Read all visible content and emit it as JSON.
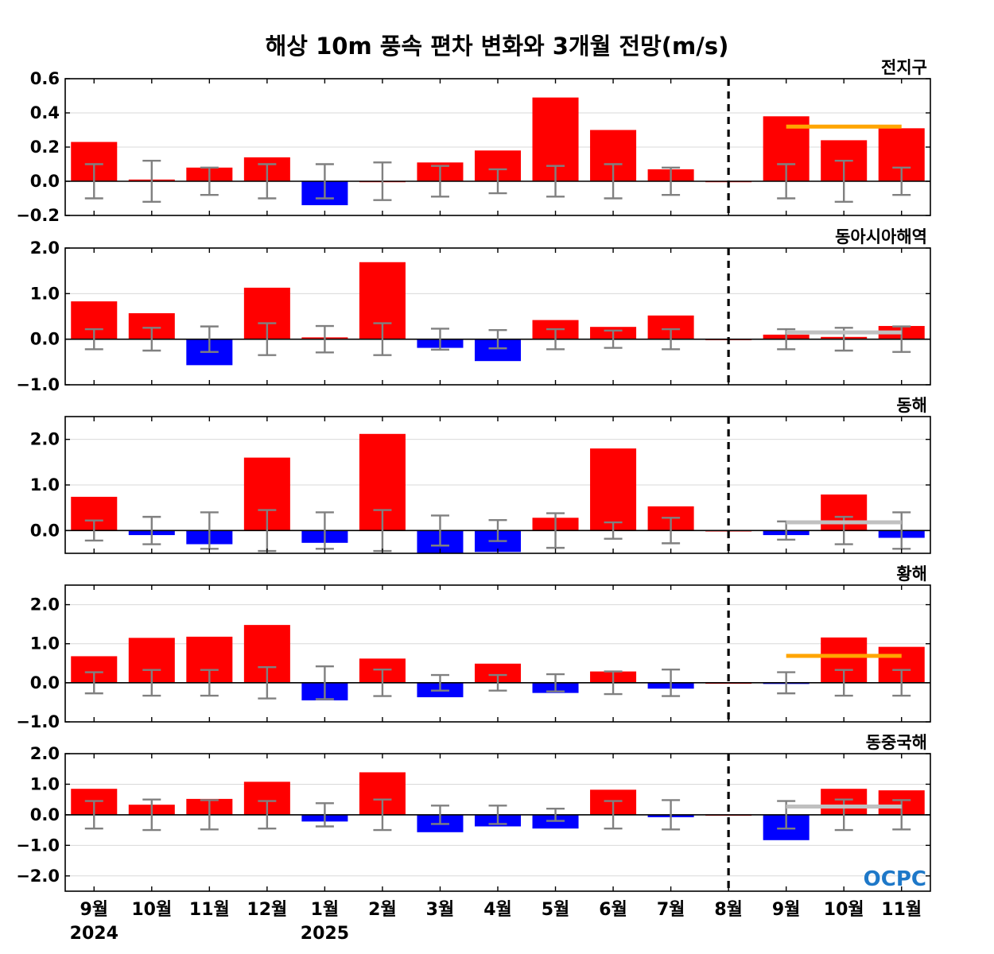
{
  "title": "해상 10m 풍속 편차 변화와 3개월 전망(m/s)",
  "logo": "OCPC",
  "colors": {
    "positive": "#ff0000",
    "negative": "#0000ff",
    "errorbar": "#808080",
    "forecast_above": "#ffa500",
    "forecast_normal": "#c0c0c0"
  },
  "chart_data": [
    {
      "type": "bar",
      "name": "전지구",
      "categories": [
        "9월",
        "10월",
        "11월",
        "12월",
        "1월",
        "2월",
        "3월",
        "4월",
        "5월",
        "6월",
        "7월",
        "8월",
        "9월",
        "10월",
        "11월"
      ],
      "values": [
        0.23,
        0.01,
        0.08,
        0.14,
        -0.14,
        0.0,
        0.11,
        0.18,
        0.49,
        0.3,
        0.07,
        0.0,
        0.38,
        0.24,
        0.31
      ],
      "error_range": [
        [
          -0.1,
          0.1
        ],
        [
          -0.12,
          0.12
        ],
        [
          -0.08,
          0.08
        ],
        [
          -0.1,
          0.1
        ],
        [
          -0.1,
          0.1
        ],
        [
          -0.11,
          0.11
        ],
        [
          -0.09,
          0.09
        ],
        [
          -0.07,
          0.07
        ],
        [
          -0.09,
          0.09
        ],
        [
          -0.1,
          0.1
        ],
        [
          -0.08,
          0.08
        ],
        null,
        [
          -0.1,
          0.1
        ],
        [
          -0.12,
          0.12
        ],
        [
          -0.08,
          0.08
        ]
      ],
      "forecast": {
        "from_index": 12,
        "to_index": 14,
        "value": 0.32,
        "category": "above"
      },
      "ylim": [
        -0.2,
        0.6
      ],
      "yticks": [
        -0.2,
        0.0,
        0.2,
        0.4,
        0.6
      ],
      "ytick_labels": [
        "−0.2",
        "0.0",
        "0.2",
        "0.4",
        "0.6"
      ]
    },
    {
      "type": "bar",
      "name": "동아시아해역",
      "categories": [
        "9월",
        "10월",
        "11월",
        "12월",
        "1월",
        "2월",
        "3월",
        "4월",
        "5월",
        "6월",
        "7월",
        "8월",
        "9월",
        "10월",
        "11월"
      ],
      "values": [
        0.83,
        0.57,
        -0.57,
        1.13,
        0.04,
        1.69,
        -0.19,
        -0.48,
        0.42,
        0.27,
        0.52,
        0.0,
        0.1,
        0.05,
        0.29
      ],
      "error_range": [
        [
          -0.22,
          0.22
        ],
        [
          -0.25,
          0.25
        ],
        [
          -0.28,
          0.28
        ],
        [
          -0.35,
          0.35
        ],
        [
          -0.29,
          0.29
        ],
        [
          -0.35,
          0.35
        ],
        [
          -0.23,
          0.23
        ],
        [
          -0.2,
          0.2
        ],
        [
          -0.22,
          0.22
        ],
        [
          -0.19,
          0.19
        ],
        [
          -0.22,
          0.22
        ],
        null,
        [
          -0.22,
          0.22
        ],
        [
          -0.25,
          0.25
        ],
        [
          -0.28,
          0.28
        ]
      ],
      "forecast": {
        "from_index": 12,
        "to_index": 14,
        "value": 0.15,
        "category": "normal"
      },
      "ylim": [
        -1.0,
        2.0
      ],
      "yticks": [
        -1.0,
        0.0,
        1.0,
        2.0
      ],
      "ytick_labels": [
        "−1.0",
        "0.0",
        "1.0",
        "2.0"
      ]
    },
    {
      "type": "bar",
      "name": "동해",
      "categories": [
        "9월",
        "10월",
        "11월",
        "12월",
        "1월",
        "2월",
        "3월",
        "4월",
        "5월",
        "6월",
        "7월",
        "8월",
        "9월",
        "10월",
        "11월"
      ],
      "values": [
        0.74,
        -0.1,
        -0.3,
        1.6,
        -0.27,
        2.12,
        -0.52,
        -0.47,
        0.28,
        1.8,
        0.53,
        0.0,
        -0.1,
        0.79,
        -0.16
      ],
      "error_range": [
        [
          -0.22,
          0.22
        ],
        [
          -0.3,
          0.3
        ],
        [
          -0.4,
          0.4
        ],
        [
          -0.45,
          0.45
        ],
        [
          -0.4,
          0.4
        ],
        [
          -0.45,
          0.45
        ],
        [
          -0.33,
          0.33
        ],
        [
          -0.23,
          0.23
        ],
        [
          -0.38,
          0.38
        ],
        [
          -0.18,
          0.18
        ],
        [
          -0.28,
          0.28
        ],
        null,
        [
          -0.2,
          0.2
        ],
        [
          -0.3,
          0.3
        ],
        [
          -0.4,
          0.4
        ]
      ],
      "forecast": {
        "from_index": 12,
        "to_index": 14,
        "value": 0.18,
        "category": "normal"
      },
      "ylim": [
        -0.5,
        2.5
      ],
      "yticks": [
        0.0,
        1.0,
        2.0
      ],
      "ytick_labels": [
        "0.0",
        "1.0",
        "2.0"
      ]
    },
    {
      "type": "bar",
      "name": "황해",
      "categories": [
        "9월",
        "10월",
        "11월",
        "12월",
        "1월",
        "2월",
        "3월",
        "4월",
        "5월",
        "6월",
        "7월",
        "8월",
        "9월",
        "10월",
        "11월"
      ],
      "values": [
        0.68,
        1.15,
        1.18,
        1.48,
        -0.45,
        0.62,
        -0.37,
        0.49,
        -0.26,
        0.29,
        -0.15,
        0.0,
        -0.03,
        1.16,
        0.92
      ],
      "error_range": [
        [
          -0.27,
          0.27
        ],
        [
          -0.33,
          0.33
        ],
        [
          -0.33,
          0.33
        ],
        [
          -0.4,
          0.4
        ],
        [
          -0.42,
          0.42
        ],
        [
          -0.34,
          0.34
        ],
        [
          -0.2,
          0.2
        ],
        [
          -0.2,
          0.2
        ],
        [
          -0.22,
          0.22
        ],
        [
          -0.29,
          0.29
        ],
        [
          -0.34,
          0.34
        ],
        null,
        [
          -0.27,
          0.27
        ],
        [
          -0.33,
          0.33
        ],
        [
          -0.33,
          0.33
        ]
      ],
      "forecast": {
        "from_index": 12,
        "to_index": 14,
        "value": 0.69,
        "category": "above"
      },
      "ylim": [
        -1.0,
        2.5
      ],
      "yticks": [
        -1.0,
        0.0,
        1.0,
        2.0
      ],
      "ytick_labels": [
        "−1.0",
        "0.0",
        "1.0",
        "2.0"
      ]
    },
    {
      "type": "bar",
      "name": "동중국해",
      "categories": [
        "9월",
        "10월",
        "11월",
        "12월",
        "1월",
        "2월",
        "3월",
        "4월",
        "5월",
        "6월",
        "7월",
        "8월",
        "9월",
        "10월",
        "11월"
      ],
      "values": [
        0.85,
        0.33,
        0.52,
        1.08,
        -0.22,
        1.39,
        -0.57,
        -0.38,
        -0.45,
        0.82,
        -0.08,
        0.0,
        -0.83,
        0.85,
        0.8
      ],
      "error_range": [
        [
          -0.45,
          0.45
        ],
        [
          -0.5,
          0.5
        ],
        [
          -0.48,
          0.48
        ],
        [
          -0.45,
          0.45
        ],
        [
          -0.38,
          0.38
        ],
        [
          -0.5,
          0.5
        ],
        [
          -0.3,
          0.3
        ],
        [
          -0.3,
          0.3
        ],
        [
          -0.2,
          0.2
        ],
        [
          -0.45,
          0.45
        ],
        [
          -0.48,
          0.48
        ],
        null,
        [
          -0.45,
          0.45
        ],
        [
          -0.5,
          0.5
        ],
        [
          -0.48,
          0.48
        ]
      ],
      "forecast": {
        "from_index": 12,
        "to_index": 14,
        "value": 0.27,
        "category": "normal"
      },
      "ylim": [
        -2.5,
        2.0
      ],
      "yticks": [
        -2.0,
        -1.0,
        0.0,
        1.0,
        2.0
      ],
      "ytick_labels": [
        "−2.0",
        "−1.0",
        "0.0",
        "1.0",
        "2.0"
      ]
    }
  ],
  "x_axis": {
    "labels": [
      "9월",
      "10월",
      "11월",
      "12월",
      "1월",
      "2월",
      "3월",
      "4월",
      "5월",
      "6월",
      "7월",
      "8월",
      "9월",
      "10월",
      "11월"
    ],
    "year_labels": [
      {
        "index": 0,
        "text": "2024"
      },
      {
        "index": 4,
        "text": "2025"
      }
    ],
    "current_month_index": 11
  }
}
